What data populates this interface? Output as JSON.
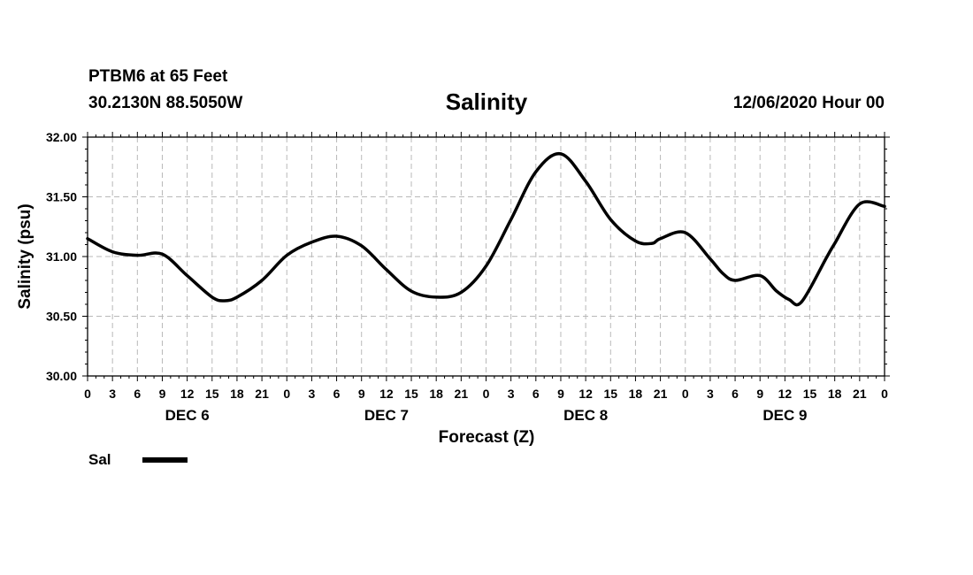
{
  "header": {
    "station": "PTBM6 at 65 Feet",
    "coordinates": "30.2130N 88.5050W",
    "title": "Salinity",
    "forecast_time": "12/06/2020 Hour 00"
  },
  "legend": {
    "label": "Sal",
    "color": "#000000"
  },
  "colors": {
    "line": "#000000",
    "grid": "#b8b8b8",
    "background": "#ffffff"
  },
  "chart_data": {
    "type": "line",
    "title": "Salinity",
    "xlabel": "Forecast (Z)",
    "ylabel": "Salinity (psu)",
    "xlim": [
      0,
      96
    ],
    "ylim": [
      30.0,
      32.0
    ],
    "grid": true,
    "legend_position": "bottom-left",
    "yticks": [
      "30.00",
      "30.50",
      "31.00",
      "31.50",
      "32.00"
    ],
    "xticks": [
      "0",
      "3",
      "6",
      "9",
      "12",
      "15",
      "18",
      "21",
      "0",
      "3",
      "6",
      "9",
      "12",
      "15",
      "18",
      "21",
      "0",
      "3",
      "6",
      "9",
      "12",
      "15",
      "18",
      "21",
      "0",
      "3",
      "6",
      "9",
      "12",
      "15",
      "18",
      "21",
      "0"
    ],
    "day_labels": [
      {
        "label": "DEC 6",
        "x": 12
      },
      {
        "label": "DEC 7",
        "x": 36
      },
      {
        "label": "DEC 8",
        "x": 60
      },
      {
        "label": "DEC 9",
        "x": 84
      }
    ],
    "series": [
      {
        "name": "Sal",
        "x": [
          0,
          3,
          6,
          9,
          12,
          15,
          16.5,
          18,
          21,
          24,
          27,
          30,
          33,
          36,
          39,
          42,
          45,
          48,
          51,
          54,
          57,
          60,
          63,
          66,
          68,
          69,
          72,
          75,
          76.5,
          78,
          81,
          83,
          84.5,
          86,
          89,
          90,
          93,
          96
        ],
        "values": [
          31.15,
          31.04,
          31.01,
          31.02,
          30.84,
          30.66,
          30.63,
          30.66,
          30.8,
          31.01,
          31.12,
          31.17,
          31.09,
          30.89,
          30.71,
          30.66,
          30.7,
          30.92,
          31.31,
          31.71,
          31.86,
          31.63,
          31.31,
          31.13,
          31.11,
          31.15,
          31.2,
          30.98,
          30.86,
          30.8,
          30.84,
          30.71,
          30.64,
          30.62,
          30.99,
          31.11,
          31.44,
          31.42
        ]
      }
    ]
  }
}
